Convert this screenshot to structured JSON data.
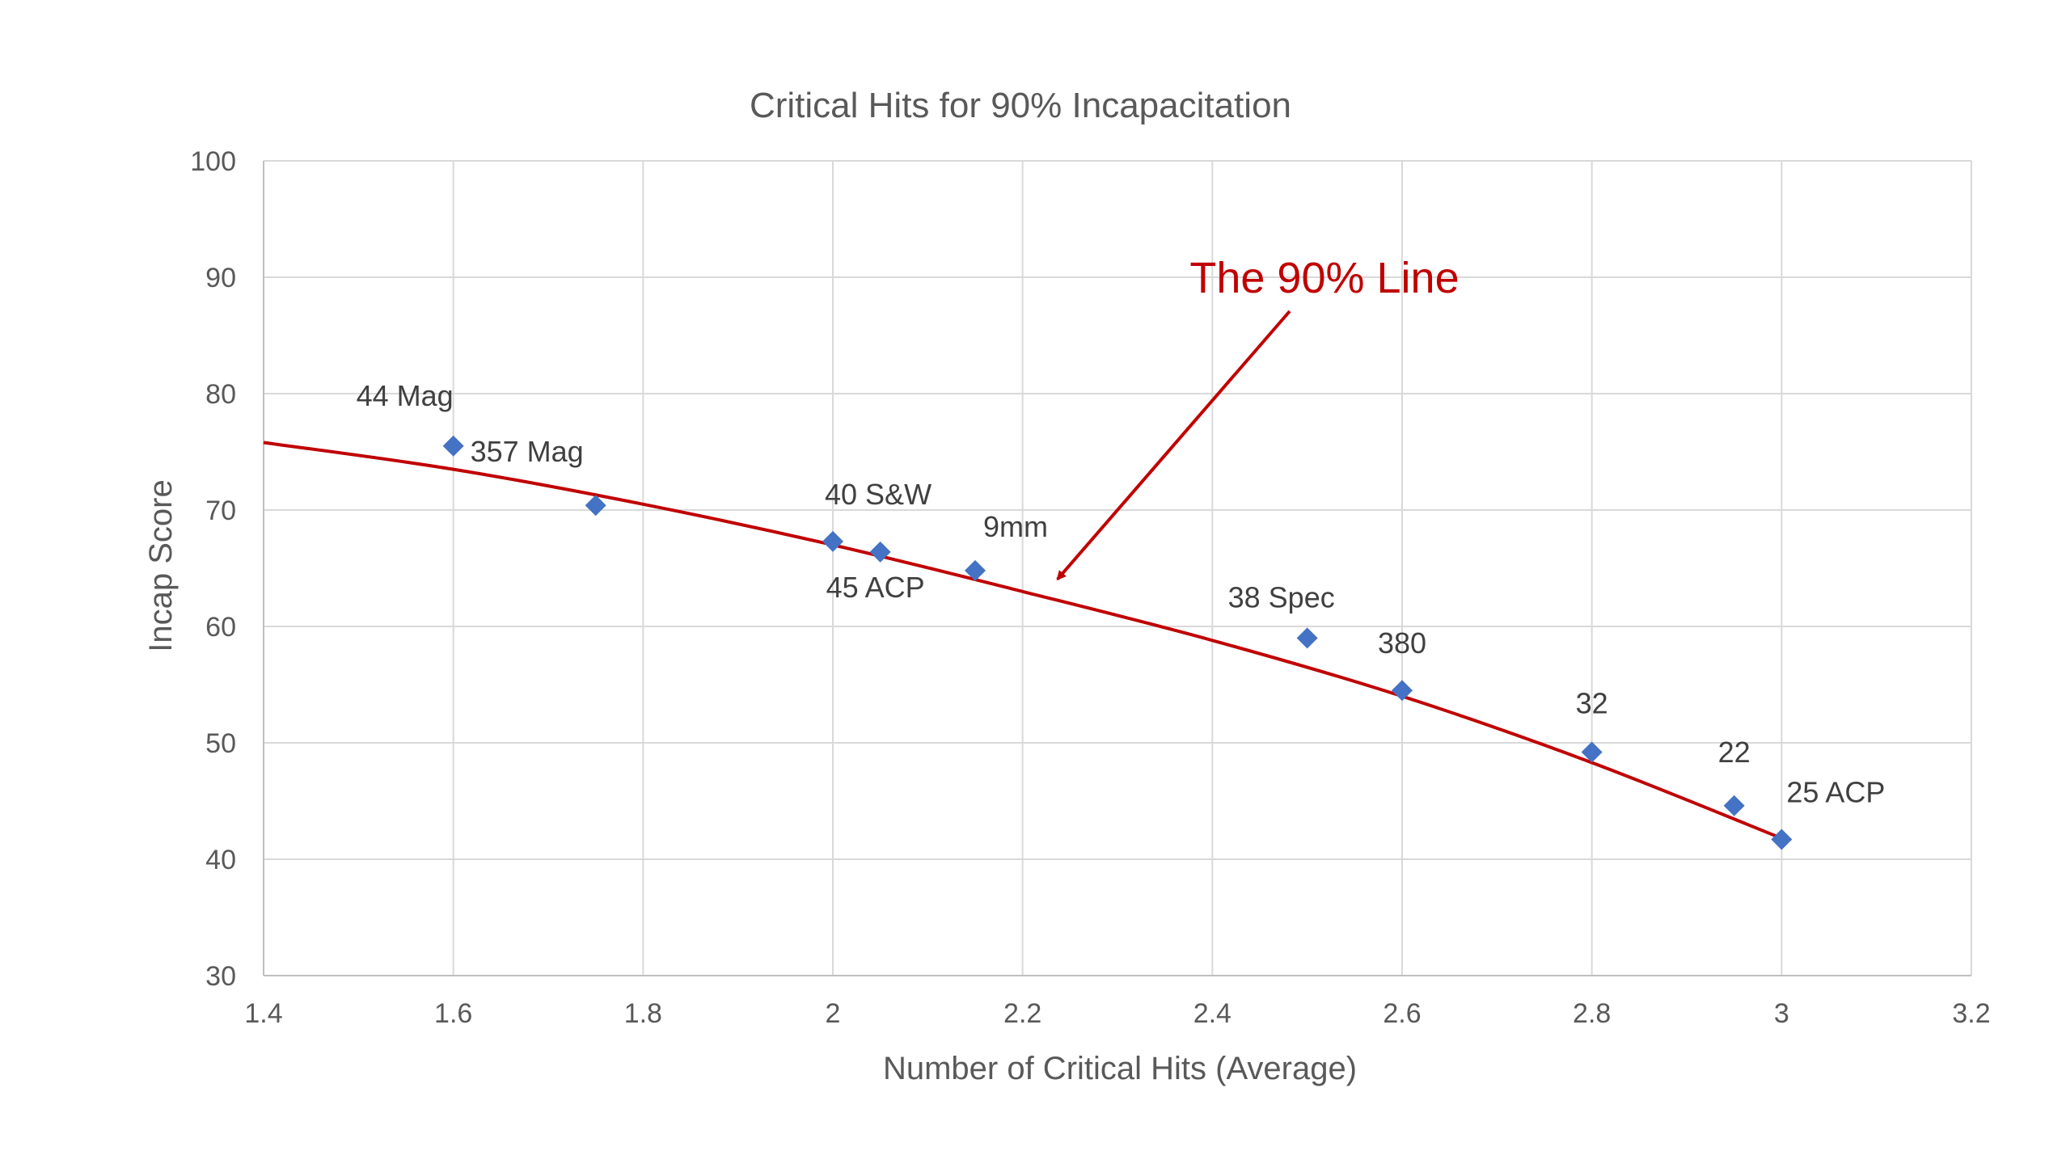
{
  "chart_data": {
    "type": "scatter",
    "title": "Critical Hits for 90% Incapacitation",
    "xlabel": "Number of Critical Hits (Average)",
    "ylabel": "Incap Score",
    "xlim": [
      1.4,
      3.2
    ],
    "ylim": [
      30,
      100
    ],
    "x_ticks": [
      1.4,
      1.6,
      1.8,
      2,
      2.2,
      2.4,
      2.6,
      2.8,
      3,
      3.2
    ],
    "x_tick_labels": [
      "1.4",
      "1.6",
      "1.8",
      "2",
      "2.2",
      "2.4",
      "2.6",
      "2.8",
      "3",
      "3.2"
    ],
    "y_ticks": [
      30,
      40,
      50,
      60,
      70,
      80,
      90,
      100
    ],
    "y_tick_labels": [
      "30",
      "40",
      "50",
      "60",
      "70",
      "80",
      "90",
      "100"
    ],
    "grid": true,
    "legend": "none",
    "marker": "diamond",
    "marker_color": "#4472c4",
    "trendline_color": "#c00000",
    "points": [
      {
        "label": "44 Mag",
        "x": 1.6,
        "y": 75.5,
        "label_pos": "above"
      },
      {
        "label": "357 Mag",
        "x": 1.75,
        "y": 70.4,
        "label_pos": "above"
      },
      {
        "label": "40 S&W",
        "x": 2.0,
        "y": 67.3,
        "label_pos": "above-right"
      },
      {
        "label": "45 ACP",
        "x": 2.05,
        "y": 66.4,
        "label_pos": "below"
      },
      {
        "label": "9mm",
        "x": 2.15,
        "y": 64.8,
        "label_pos": "above-right"
      },
      {
        "label": "38 Spec",
        "x": 2.5,
        "y": 59.0,
        "label_pos": "above"
      },
      {
        "label": "380",
        "x": 2.6,
        "y": 54.5,
        "label_pos": "above"
      },
      {
        "label": "32",
        "x": 2.8,
        "y": 49.2,
        "label_pos": "above"
      },
      {
        "label": "22",
        "x": 2.95,
        "y": 44.6,
        "label_pos": "above"
      },
      {
        "label": "25 ACP",
        "x": 3.0,
        "y": 41.7,
        "label_pos": "above-right"
      }
    ],
    "trendline": {
      "x": [
        1.4,
        1.6,
        1.8,
        2.0,
        2.2,
        2.4,
        2.6,
        2.8,
        3.0
      ],
      "y": [
        75.8,
        73.5,
        70.5,
        67.0,
        63.0,
        58.8,
        54.0,
        48.3,
        41.8
      ]
    },
    "annotation": {
      "text": "The 90% Line",
      "target": {
        "x": 2.23,
        "y": 63.5
      }
    }
  }
}
